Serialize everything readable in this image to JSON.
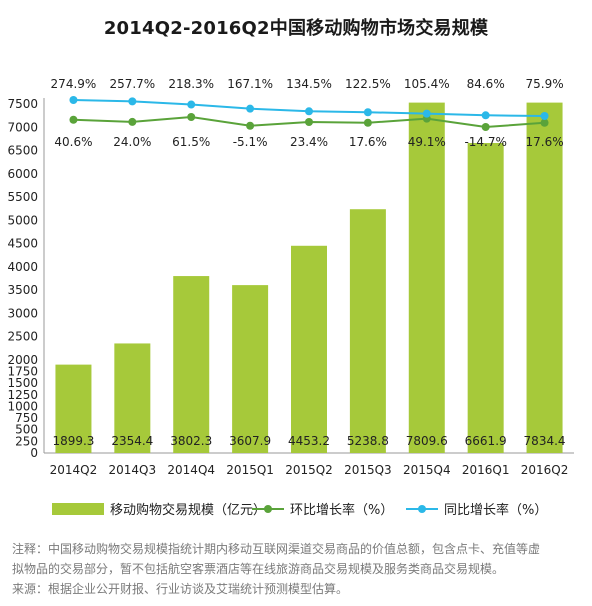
{
  "chart_data": {
    "type": "bar",
    "title": "2014Q2-2016Q2中国移动购物市场交易规模",
    "categories": [
      "2014Q2",
      "2014Q3",
      "2014Q4",
      "2015Q1",
      "2015Q2",
      "2015Q3",
      "2015Q4",
      "2016Q1",
      "2016Q2"
    ],
    "ylim": [
      0,
      7500
    ],
    "yticks": [
      0,
      250,
      500,
      750,
      1000,
      1250,
      1500,
      1750,
      2000,
      2500,
      3000,
      3500,
      4000,
      4500,
      5000,
      5500,
      6000,
      6500,
      7000,
      7500
    ],
    "grid": false,
    "legend_position": "bottom",
    "series": [
      {
        "name": "移动购物交易规模（亿元）",
        "type": "bar",
        "values": [
          1899.3,
          2354.4,
          3802.3,
          3607.9,
          4453.2,
          5238.8,
          7809.6,
          6661.9,
          7834.4
        ],
        "labels": [
          "1899.3",
          "2354.4",
          "3802.3",
          "3607.9",
          "4453.2",
          "5238.8",
          "7809.6",
          "6661.9",
          "7834.4"
        ],
        "color": "#a6c93a"
      },
      {
        "name": "环比增长率（%）",
        "type": "line",
        "values": [
          40.6,
          24.0,
          61.5,
          -5.1,
          23.4,
          17.6,
          49.1,
          -14.7,
          17.6
        ],
        "labels": [
          "40.6%",
          "24.0%",
          "61.5%",
          "-5.1%",
          "23.4%",
          "17.6%",
          "49.1%",
          "-14.7%",
          "17.6%"
        ],
        "color": "#5aa33a"
      },
      {
        "name": "同比增长率（%）",
        "type": "line",
        "values": [
          274.9,
          257.7,
          218.3,
          167.1,
          134.5,
          122.5,
          105.4,
          84.6,
          75.9
        ],
        "labels": [
          "274.9%",
          "257.7%",
          "218.3%",
          "167.1%",
          "134.5%",
          "122.5%",
          "105.4%",
          "84.6%",
          "75.9%"
        ],
        "color": "#2bb8e8"
      }
    ]
  },
  "notes": {
    "line1": "注释：中国移动购物交易规模指统计期内移动互联网渠道交易商品的价值总额，包含点卡、充值等虚",
    "line2": "拟物品的交易部分，暂不包括航空客票酒店等在线旅游商品交易规模及服务类商品交易规模。",
    "line3": "来源：根据企业公开财报、行业访谈及艾瑞统计预测模型估算。"
  }
}
